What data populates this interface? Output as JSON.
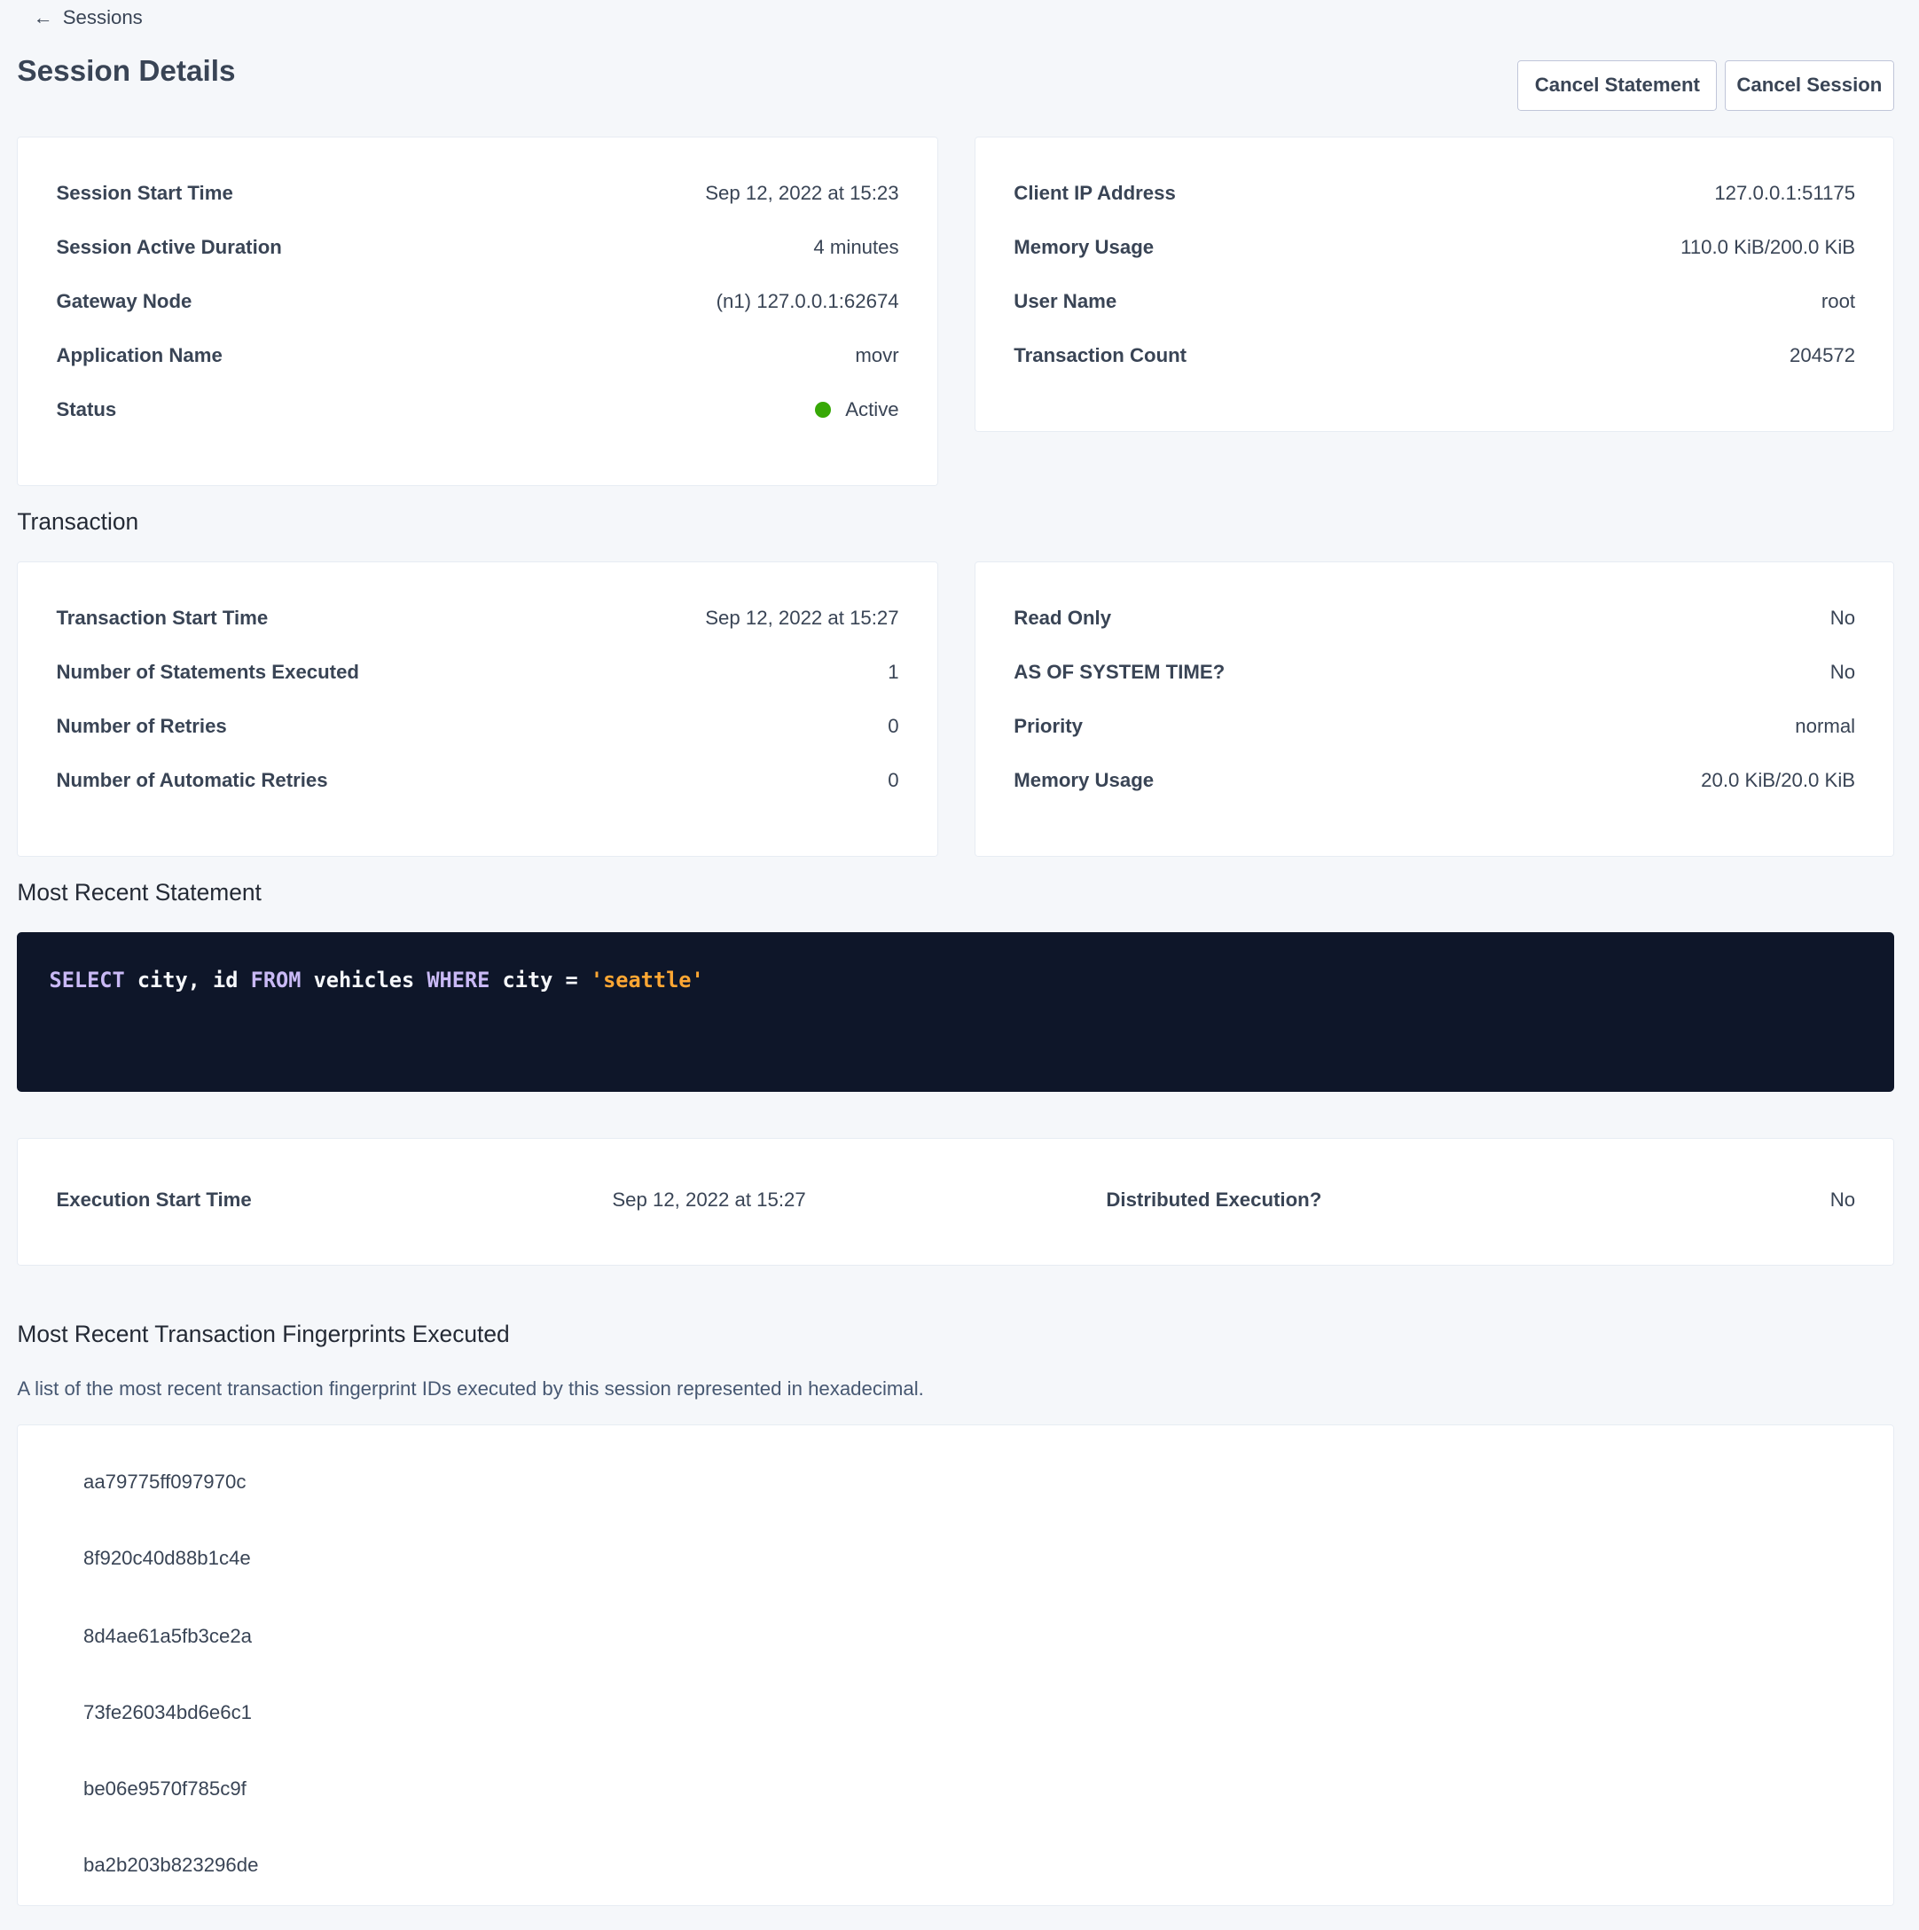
{
  "breadcrumb": {
    "back_label": "Sessions",
    "icon": "arrow-left-icon"
  },
  "header": {
    "title": "Session Details",
    "cancel_statement": "Cancel Statement",
    "cancel_session": "Cancel Session"
  },
  "session_left": [
    {
      "label": "Session Start Time",
      "value": "Sep 12, 2022 at 15:23"
    },
    {
      "label": "Session Active Duration",
      "value": "4 minutes"
    },
    {
      "label": "Gateway Node",
      "value": "(n1) 127.0.0.1:62674"
    },
    {
      "label": "Application Name",
      "value": "movr"
    },
    {
      "label": "Status",
      "value": "Active"
    }
  ],
  "session_right": [
    {
      "label": "Client IP Address",
      "value": "127.0.0.1:51175"
    },
    {
      "label": "Memory Usage",
      "value": "110.0 KiB/200.0 KiB"
    },
    {
      "label": "User Name",
      "value": "root"
    },
    {
      "label": "Transaction Count",
      "value": "204572"
    }
  ],
  "transaction": {
    "heading": "Transaction",
    "left": [
      {
        "label": "Transaction Start Time",
        "value": "Sep 12, 2022 at 15:27"
      },
      {
        "label": "Number of Statements Executed",
        "value": "1"
      },
      {
        "label": "Number of Retries",
        "value": "0"
      },
      {
        "label": "Number of Automatic Retries",
        "value": "0"
      }
    ],
    "right": [
      {
        "label": "Read Only",
        "value": "No"
      },
      {
        "label": "AS OF SYSTEM TIME?",
        "value": "No"
      },
      {
        "label": "Priority",
        "value": "normal"
      },
      {
        "label": "Memory Usage",
        "value": "20.0 KiB/20.0 KiB"
      }
    ]
  },
  "statement": {
    "heading": "Most Recent Statement",
    "tokens": [
      "SELECT",
      " city, id ",
      "FROM",
      " vehicles ",
      "WHERE",
      " city = ",
      "'seattle'"
    ],
    "execution": [
      {
        "label": "Execution Start Time",
        "value": "Sep 12, 2022 at 15:27"
      },
      {
        "label": "Distributed Execution?",
        "value": "No"
      }
    ]
  },
  "fingerprints": {
    "heading": "Most Recent Transaction Fingerprints Executed",
    "description": "A list of the most recent transaction fingerprint IDs executed by this session represented in hexadecimal.",
    "items": [
      "aa79775ff097970c",
      "8f920c40d88b1c4e",
      "8d4ae61a5fb3ce2a",
      "73fe26034bd6e6c1",
      "be06e9570f785c9f",
      "ba2b203b823296de"
    ]
  },
  "colors": {
    "status_active": "#37a806",
    "link": "#0055ff",
    "code_bg": "#0e1629",
    "keyword": "#c9b9f5",
    "string": "#ffa733"
  }
}
